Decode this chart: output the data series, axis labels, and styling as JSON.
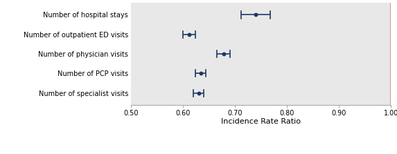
{
  "services": [
    "Number of hospital stays",
    "Number of outpatient ED visits",
    "Number of physician visits",
    "Number of PCP visits",
    "Number of specialist visits"
  ],
  "point_estimates": [
    0.74,
    0.612,
    0.678,
    0.634,
    0.63
  ],
  "ci_lower": [
    0.712,
    0.6,
    0.665,
    0.624,
    0.62
  ],
  "ci_upper": [
    0.768,
    0.624,
    0.691,
    0.644,
    0.64
  ],
  "xlim": [
    0.5,
    1.0
  ],
  "xticks": [
    0.5,
    0.6,
    0.7,
    0.8,
    0.9,
    1.0
  ],
  "xtick_labels": [
    "0.50",
    "0.60",
    "0.70",
    "0.80",
    "0.90",
    "1.00"
  ],
  "xlabel": "Incidence Rate Ratio",
  "vline_x": 1.0,
  "dot_color": "#1f3864",
  "dot_size": 18,
  "ci_color": "#1f3864",
  "ci_linewidth": 1.2,
  "background_color": "#e8e8e8",
  "vline_color": "#d08080",
  "label_fontsize": 7.0,
  "tick_fontsize": 7.0,
  "xlabel_fontsize": 8.0,
  "legend_fontsize": 7.0
}
